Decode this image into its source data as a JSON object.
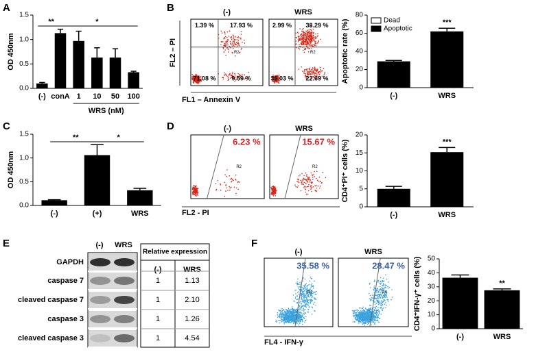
{
  "panels": [
    "A",
    "B",
    "C",
    "D",
    "E",
    "F"
  ],
  "chart_data": [
    {
      "type": "bar",
      "ylabel": "OD 450nm",
      "categories": [
        "(-)",
        "conA",
        "1",
        "10",
        "50",
        "100"
      ],
      "values": [
        0.1,
        1.13,
        0.97,
        0.63,
        0.63,
        0.33
      ],
      "errors": [
        0.02,
        0.08,
        0.2,
        0.2,
        0.18,
        0.02
      ],
      "color": "#000000",
      "ylim": [
        0,
        1.5
      ],
      "yticks": [
        {
          "value": 0,
          "label": "0.0"
        },
        {
          "value": 0.5,
          "label": "0.5"
        },
        {
          "value": 1,
          "label": "1.0"
        },
        {
          "value": 1.5,
          "label": "1.5"
        }
      ],
      "group_label": "WRS (nM)",
      "annotations": [
        "**",
        "*"
      ]
    },
    {
      "type": "bar",
      "ylabel": "Apoptotic rate (%)",
      "categories": [
        "(-)",
        "WRS"
      ],
      "values": [
        29,
        62
      ],
      "errors": [
        1,
        3.5
      ],
      "color": "#000000",
      "ylim": [
        0,
        80
      ],
      "yticks": [
        0,
        20,
        40,
        60,
        80
      ],
      "legend": [
        {
          "name": "Dead",
          "color": "#ffffff"
        },
        {
          "name": "Apoptotic",
          "color": "#000000"
        }
      ],
      "annotations": [
        "***"
      ]
    },
    {
      "type": "bar",
      "ylabel": "OD 450nm",
      "categories": [
        "(-)",
        "(+)",
        "WRS"
      ],
      "values": [
        0.11,
        1.06,
        0.32
      ],
      "errors": [
        0.01,
        0.22,
        0.04
      ],
      "color": "#000000",
      "ylim": [
        0,
        1.5
      ],
      "yticks": [
        {
          "value": 0,
          "label": "0.0"
        },
        {
          "value": 0.5,
          "label": "0.5"
        },
        {
          "value": 1,
          "label": "1.0"
        },
        {
          "value": 1.5,
          "label": "1.5"
        }
      ],
      "annotations": [
        "**",
        "*"
      ]
    },
    {
      "type": "bar",
      "ylabel": "CD4⁺PI⁺ cells (%)",
      "categories": [
        "(-)",
        "WRS"
      ],
      "values": [
        5,
        15.2
      ],
      "errors": [
        0.7,
        1.3
      ],
      "color": "#000000",
      "ylim": [
        0,
        20
      ],
      "yticks": [
        0,
        5,
        10,
        15,
        20
      ],
      "annotations": [
        "***"
      ]
    },
    {
      "type": "bar",
      "ylabel": "CD4⁺IFN-γ⁺ cells (%)",
      "categories": [
        "(-)",
        "WRS"
      ],
      "values": [
        36.5,
        27.5
      ],
      "errors": [
        2,
        1
      ],
      "color": "#000000",
      "ylim": [
        0,
        50
      ],
      "yticks": [
        0,
        10,
        20,
        30,
        40,
        50
      ],
      "annotations": [
        "**"
      ]
    }
  ],
  "flow_B": {
    "ylabel": "FL2 – PI",
    "xlabel": "FL1 – Annexin V",
    "dot_color": "#d42a1a",
    "gate": "R2",
    "plots": [
      {
        "title": "(-)",
        "quadrants": [
          "1.39 %",
          "17.93 %",
          "71.08 %",
          "9.59 %"
        ]
      },
      {
        "title": "WRS",
        "quadrants": [
          "2.99 %",
          "38.29 %",
          "36.03 %",
          "22.69 %"
        ]
      }
    ]
  },
  "flow_D": {
    "xlabel": "FL2 - PI",
    "dot_color": "#d42a1a",
    "label_color": "#e02020",
    "gate": "R2",
    "plots": [
      {
        "title": "(-)",
        "percent": "6.23 %"
      },
      {
        "title": "WRS",
        "percent": "15.67 %"
      }
    ]
  },
  "flow_F": {
    "xlabel": "FL4 - IFN-γ",
    "dot_color": "#3aa2df",
    "label_color": "#3a5f9f",
    "gate": "R4",
    "plots": [
      {
        "title": "(-)",
        "percent": "35.58 %"
      },
      {
        "title": "WRS",
        "percent": "28.47 %"
      }
    ]
  },
  "blot": {
    "columns": [
      "(-)",
      "WRS"
    ],
    "rows": [
      "GAPDH",
      "caspase 7",
      "cleaved caspase 7",
      "caspase 3",
      "cleaved caspase 3"
    ],
    "table": {
      "title": "Relative expression",
      "columns": [
        "(-)",
        "WRS"
      ],
      "rows": [
        [
          "1",
          "1.13"
        ],
        [
          "1",
          "2.10"
        ],
        [
          "1",
          "1.26"
        ],
        [
          "1",
          "4.54"
        ]
      ]
    }
  }
}
